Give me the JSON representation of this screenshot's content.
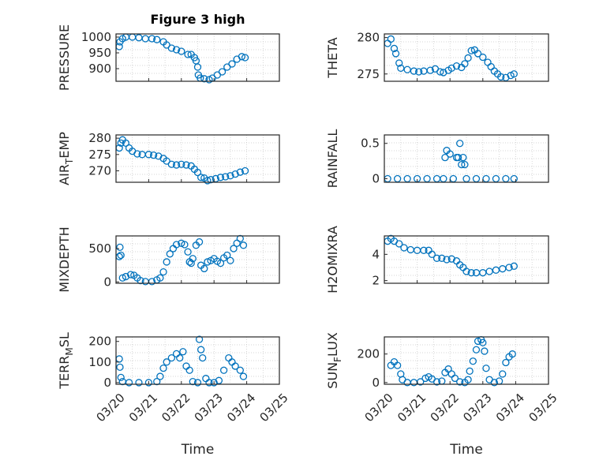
{
  "figure": {
    "title": "Figure 3 high"
  },
  "colors": {
    "marker": "#0072bd",
    "axis": "#262626",
    "grid": "#c8c8c8"
  },
  "chart_data": [
    {
      "type": "scatter",
      "ylabel": "PRESSURE",
      "ylabel_sub": "",
      "ylabel_rest": "",
      "xlim": [
        0,
        5
      ],
      "ylim": [
        860,
        1010
      ],
      "yticks": [
        900,
        950,
        1000
      ],
      "title": "Figure 3 high",
      "xticklabels": [],
      "points": [
        [
          0.1,
          970
        ],
        [
          0.12,
          985
        ],
        [
          0.2,
          995
        ],
        [
          0.3,
          1000
        ],
        [
          0.5,
          1000
        ],
        [
          0.7,
          998
        ],
        [
          0.9,
          995
        ],
        [
          1.1,
          995
        ],
        [
          1.25,
          992
        ],
        [
          1.45,
          985
        ],
        [
          1.55,
          975
        ],
        [
          1.7,
          965
        ],
        [
          1.85,
          960
        ],
        [
          2.0,
          955
        ],
        [
          2.2,
          945
        ],
        [
          2.3,
          945
        ],
        [
          2.4,
          935
        ],
        [
          2.45,
          925
        ],
        [
          2.5,
          905
        ],
        [
          2.52,
          880
        ],
        [
          2.58,
          870
        ],
        [
          2.7,
          868
        ],
        [
          2.85,
          865
        ],
        [
          2.95,
          870
        ],
        [
          3.1,
          880
        ],
        [
          3.25,
          890
        ],
        [
          3.4,
          905
        ],
        [
          3.55,
          915
        ],
        [
          3.7,
          930
        ],
        [
          3.85,
          938
        ],
        [
          3.95,
          935
        ]
      ]
    },
    {
      "type": "scatter",
      "ylabel": "THETA",
      "ylabel_sub": "",
      "ylabel_rest": "",
      "xlim": [
        0,
        5
      ],
      "ylim": [
        274,
        280.5
      ],
      "yticks": [
        275,
        280
      ],
      "xticklabels": [],
      "points": [
        [
          0.1,
          279.2
        ],
        [
          0.2,
          279.8
        ],
        [
          0.3,
          278.5
        ],
        [
          0.35,
          277.8
        ],
        [
          0.45,
          276.5
        ],
        [
          0.5,
          275.8
        ],
        [
          0.7,
          275.6
        ],
        [
          0.9,
          275.4
        ],
        [
          1.05,
          275.3
        ],
        [
          1.2,
          275.4
        ],
        [
          1.4,
          275.5
        ],
        [
          1.55,
          275.7
        ],
        [
          1.7,
          275.3
        ],
        [
          1.8,
          275.2
        ],
        [
          1.95,
          275.5
        ],
        [
          2.05,
          275.8
        ],
        [
          2.2,
          276.1
        ],
        [
          2.35,
          275.9
        ],
        [
          2.45,
          276.4
        ],
        [
          2.55,
          277.2
        ],
        [
          2.65,
          278.2
        ],
        [
          2.75,
          278.3
        ],
        [
          2.85,
          277.8
        ],
        [
          3.0,
          277.3
        ],
        [
          3.15,
          276.6
        ],
        [
          3.25,
          276.0
        ],
        [
          3.35,
          275.4
        ],
        [
          3.45,
          275.0
        ],
        [
          3.55,
          274.6
        ],
        [
          3.7,
          274.5
        ],
        [
          3.85,
          274.8
        ],
        [
          3.95,
          275.0
        ]
      ]
    },
    {
      "type": "scatter",
      "ylabel": "AIR",
      "ylabel_sub": "T",
      "ylabel_rest": "EMP",
      "xlim": [
        0,
        5
      ],
      "ylim": [
        266.5,
        281
      ],
      "yticks": [
        270,
        275,
        280
      ],
      "xticklabels": [],
      "points": [
        [
          0.1,
          277
        ],
        [
          0.15,
          278.5
        ],
        [
          0.2,
          279.5
        ],
        [
          0.3,
          278.5
        ],
        [
          0.4,
          277
        ],
        [
          0.5,
          276
        ],
        [
          0.65,
          275.2
        ],
        [
          0.8,
          275
        ],
        [
          1.0,
          275
        ],
        [
          1.15,
          274.8
        ],
        [
          1.3,
          274.5
        ],
        [
          1.45,
          273.8
        ],
        [
          1.55,
          273
        ],
        [
          1.7,
          272
        ],
        [
          1.85,
          271.8
        ],
        [
          2.0,
          272
        ],
        [
          2.15,
          271.8
        ],
        [
          2.3,
          271.5
        ],
        [
          2.4,
          270.5
        ],
        [
          2.5,
          269.5
        ],
        [
          2.6,
          268
        ],
        [
          2.7,
          267.8
        ],
        [
          2.8,
          267
        ],
        [
          2.9,
          267.3
        ],
        [
          3.05,
          267.6
        ],
        [
          3.2,
          268
        ],
        [
          3.35,
          268.2
        ],
        [
          3.5,
          268.5
        ],
        [
          3.65,
          269
        ],
        [
          3.8,
          269.6
        ],
        [
          3.95,
          270
        ]
      ]
    },
    {
      "type": "scatter",
      "ylabel": "RAINFALL",
      "ylabel_sub": "",
      "ylabel_rest": "",
      "xlim": [
        0,
        5
      ],
      "ylim": [
        -0.05,
        0.62
      ],
      "yticks": [
        0,
        0.5
      ],
      "xticklabels": [],
      "points": [
        [
          0.1,
          0
        ],
        [
          0.4,
          0
        ],
        [
          0.7,
          0
        ],
        [
          1.0,
          0
        ],
        [
          1.3,
          0
        ],
        [
          1.6,
          0
        ],
        [
          1.8,
          0
        ],
        [
          1.85,
          0.3
        ],
        [
          1.9,
          0.4
        ],
        [
          2.0,
          0.35
        ],
        [
          2.1,
          0
        ],
        [
          2.2,
          0.3
        ],
        [
          2.25,
          0.3
        ],
        [
          2.3,
          0.5
        ],
        [
          2.35,
          0.2
        ],
        [
          2.4,
          0.3
        ],
        [
          2.45,
          0.2
        ],
        [
          2.5,
          0
        ],
        [
          2.8,
          0
        ],
        [
          3.1,
          0
        ],
        [
          3.4,
          0
        ],
        [
          3.7,
          0
        ],
        [
          3.95,
          0
        ]
      ]
    },
    {
      "type": "scatter",
      "ylabel": "MIXDEPTH",
      "ylabel_sub": "",
      "ylabel_rest": "",
      "xlim": [
        0,
        5
      ],
      "ylim": [
        -20,
        690
      ],
      "yticks": [
        0,
        500
      ],
      "xticklabels": [],
      "points": [
        [
          0.1,
          380
        ],
        [
          0.12,
          520
        ],
        [
          0.15,
          400
        ],
        [
          0.2,
          60
        ],
        [
          0.3,
          80
        ],
        [
          0.45,
          110
        ],
        [
          0.55,
          100
        ],
        [
          0.65,
          60
        ],
        [
          0.75,
          20
        ],
        [
          0.9,
          5
        ],
        [
          1.1,
          5
        ],
        [
          1.25,
          30
        ],
        [
          1.35,
          60
        ],
        [
          1.45,
          150
        ],
        [
          1.55,
          300
        ],
        [
          1.65,
          420
        ],
        [
          1.75,
          500
        ],
        [
          1.85,
          560
        ],
        [
          2.0,
          580
        ],
        [
          2.1,
          560
        ],
        [
          2.2,
          450
        ],
        [
          2.25,
          300
        ],
        [
          2.3,
          280
        ],
        [
          2.35,
          350
        ],
        [
          2.45,
          550
        ],
        [
          2.55,
          600
        ],
        [
          2.6,
          250
        ],
        [
          2.7,
          200
        ],
        [
          2.8,
          300
        ],
        [
          2.9,
          320
        ],
        [
          3.0,
          350
        ],
        [
          3.1,
          310
        ],
        [
          3.2,
          280
        ],
        [
          3.3,
          360
        ],
        [
          3.4,
          400
        ],
        [
          3.5,
          320
        ],
        [
          3.6,
          500
        ],
        [
          3.7,
          580
        ],
        [
          3.8,
          650
        ],
        [
          3.9,
          550
        ]
      ]
    },
    {
      "type": "scatter",
      "ylabel": "H2OMIXRA",
      "ylabel_sub": "",
      "ylabel_rest": "",
      "xlim": [
        0,
        5
      ],
      "ylim": [
        1.8,
        5.4
      ],
      "yticks": [
        2,
        4
      ],
      "xticklabels": [],
      "points": [
        [
          0.1,
          5.0
        ],
        [
          0.2,
          5.2
        ],
        [
          0.3,
          5.0
        ],
        [
          0.45,
          4.8
        ],
        [
          0.6,
          4.5
        ],
        [
          0.8,
          4.35
        ],
        [
          1.0,
          4.3
        ],
        [
          1.2,
          4.3
        ],
        [
          1.35,
          4.3
        ],
        [
          1.45,
          4.0
        ],
        [
          1.6,
          3.7
        ],
        [
          1.75,
          3.7
        ],
        [
          1.9,
          3.6
        ],
        [
          2.05,
          3.65
        ],
        [
          2.2,
          3.5
        ],
        [
          2.3,
          3.2
        ],
        [
          2.4,
          3.0
        ],
        [
          2.5,
          2.7
        ],
        [
          2.65,
          2.6
        ],
        [
          2.8,
          2.6
        ],
        [
          3.0,
          2.6
        ],
        [
          3.2,
          2.7
        ],
        [
          3.4,
          2.8
        ],
        [
          3.6,
          2.9
        ],
        [
          3.8,
          3.0
        ],
        [
          3.95,
          3.1
        ]
      ]
    },
    {
      "type": "scatter",
      "ylabel": "TERR",
      "ylabel_sub": "M",
      "ylabel_rest": "SL",
      "xlim": [
        0,
        5
      ],
      "ylim": [
        -8,
        222
      ],
      "yticks": [
        0,
        100,
        200
      ],
      "xticklabels": [
        "03/20",
        "03/21",
        "03/22",
        "03/23",
        "03/24",
        "03/25"
      ],
      "xlabel": "Time",
      "points": [
        [
          0.1,
          115
        ],
        [
          0.12,
          75
        ],
        [
          0.15,
          25
        ],
        [
          0.2,
          5
        ],
        [
          0.4,
          0
        ],
        [
          0.7,
          0
        ],
        [
          1.0,
          0
        ],
        [
          1.25,
          5
        ],
        [
          1.35,
          30
        ],
        [
          1.45,
          70
        ],
        [
          1.55,
          100
        ],
        [
          1.7,
          120
        ],
        [
          1.85,
          140
        ],
        [
          1.95,
          120
        ],
        [
          2.05,
          150
        ],
        [
          2.15,
          80
        ],
        [
          2.25,
          60
        ],
        [
          2.35,
          5
        ],
        [
          2.5,
          0
        ],
        [
          2.55,
          210
        ],
        [
          2.6,
          160
        ],
        [
          2.65,
          120
        ],
        [
          2.75,
          20
        ],
        [
          2.85,
          0
        ],
        [
          3.0,
          0
        ],
        [
          3.15,
          10
        ],
        [
          3.3,
          60
        ],
        [
          3.45,
          120
        ],
        [
          3.55,
          100
        ],
        [
          3.65,
          80
        ],
        [
          3.8,
          60
        ],
        [
          3.9,
          30
        ]
      ]
    },
    {
      "type": "scatter",
      "ylabel": "SUN",
      "ylabel_sub": "F",
      "ylabel_rest": "LUX",
      "xlim": [
        0,
        5
      ],
      "ylim": [
        -12,
        320
      ],
      "yticks": [
        0,
        200
      ],
      "xticklabels": [
        "03/20",
        "03/21",
        "03/22",
        "03/23",
        "03/24",
        "03/25"
      ],
      "xlabel": "Time",
      "points": [
        [
          0.2,
          120
        ],
        [
          0.3,
          145
        ],
        [
          0.4,
          120
        ],
        [
          0.5,
          60
        ],
        [
          0.55,
          20
        ],
        [
          0.7,
          0
        ],
        [
          0.9,
          0
        ],
        [
          1.1,
          5
        ],
        [
          1.25,
          30
        ],
        [
          1.35,
          40
        ],
        [
          1.45,
          25
        ],
        [
          1.6,
          5
        ],
        [
          1.75,
          10
        ],
        [
          1.85,
          70
        ],
        [
          1.95,
          95
        ],
        [
          2.05,
          60
        ],
        [
          2.15,
          30
        ],
        [
          2.3,
          5
        ],
        [
          2.45,
          0
        ],
        [
          2.55,
          20
        ],
        [
          2.6,
          80
        ],
        [
          2.7,
          150
        ],
        [
          2.8,
          230
        ],
        [
          2.85,
          290
        ],
        [
          2.95,
          300
        ],
        [
          3.0,
          280
        ],
        [
          3.05,
          220
        ],
        [
          3.1,
          100
        ],
        [
          3.2,
          20
        ],
        [
          3.35,
          0
        ],
        [
          3.5,
          10
        ],
        [
          3.6,
          60
        ],
        [
          3.7,
          140
        ],
        [
          3.8,
          180
        ],
        [
          3.9,
          200
        ]
      ]
    }
  ]
}
